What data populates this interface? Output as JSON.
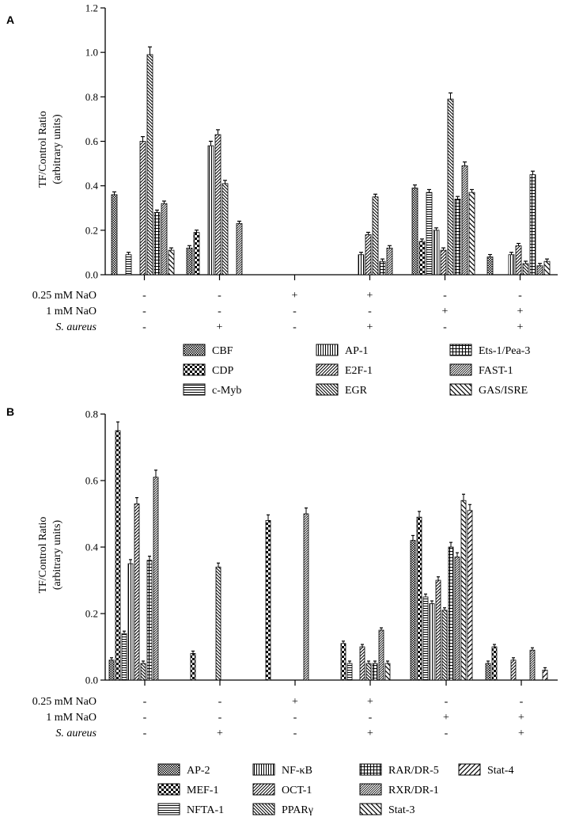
{
  "row_labels": [
    "0.25 mM  NaO",
    "1 mM  NaO",
    "S. aureus"
  ],
  "group_conditions": [
    [
      "-",
      "-",
      "-"
    ],
    [
      "-",
      "-",
      "+"
    ],
    [
      "+",
      "-",
      "-"
    ],
    [
      "+",
      "-",
      "+"
    ],
    [
      "-",
      "+",
      "-"
    ],
    [
      "-",
      "+",
      "+"
    ]
  ],
  "chart_data": [
    {
      "type": "bar",
      "panel": "A",
      "ylabel": [
        "TF/Control Ratio",
        "(arbitrary units)"
      ],
      "ylim": [
        0,
        1.2
      ],
      "yticks": [
        "0.0",
        "0.2",
        "0.4",
        "0.6",
        "0.8",
        "1.0",
        "1.2"
      ],
      "ytick_values": [
        0,
        0.2,
        0.4,
        0.6,
        0.8,
        1.0,
        1.2
      ],
      "groups": [
        "Control",
        "S. aureus",
        "0.25 mM NaO",
        "0.25 mM NaO + S. aureus",
        "1 mM NaO",
        "1 mM NaO + S. aureus"
      ],
      "series": [
        {
          "name": "CBF",
          "pattern": "pA1",
          "values": [
            0.36,
            0.12,
            0,
            0,
            0.39,
            0.08
          ]
        },
        {
          "name": "CDP",
          "pattern": "pA2",
          "values": [
            0,
            0.19,
            0,
            0,
            0.15,
            0
          ]
        },
        {
          "name": "c-Myb",
          "pattern": "pA3",
          "values": [
            0.09,
            0,
            0,
            0,
            0.37,
            0
          ]
        },
        {
          "name": "AP-1",
          "pattern": "pA4",
          "values": [
            0,
            0.58,
            0,
            0.09,
            0.2,
            0.09
          ]
        },
        {
          "name": "E2F-1",
          "pattern": "pA5",
          "values": [
            0.6,
            0.63,
            0,
            0.18,
            0.11,
            0.13
          ]
        },
        {
          "name": "EGR",
          "pattern": "pA6",
          "values": [
            0.99,
            0.41,
            0,
            0.35,
            0.79,
            0.05
          ]
        },
        {
          "name": "Ets-1/Pea-3",
          "pattern": "pA7",
          "values": [
            0.28,
            0,
            0,
            0.06,
            0.34,
            0.45
          ]
        },
        {
          "name": "FAST-1",
          "pattern": "pA8",
          "values": [
            0.32,
            0.23,
            0,
            0.12,
            0.49,
            0.04
          ]
        },
        {
          "name": "GAS/ISRE",
          "pattern": "pA9",
          "values": [
            0.11,
            0,
            0,
            0,
            0.37,
            0.06
          ]
        }
      ]
    },
    {
      "type": "bar",
      "panel": "B",
      "ylabel": [
        "TF/Control Ratio",
        "(arbitrary units)"
      ],
      "ylim": [
        0,
        0.8
      ],
      "yticks": [
        "0.0",
        "0.2",
        "0.4",
        "0.6",
        "0.8"
      ],
      "ytick_values": [
        0,
        0.2,
        0.4,
        0.6,
        0.8
      ],
      "groups": [
        "Control",
        "S. aureus",
        "0.25 mM NaO",
        "0.25 mM NaO + S. aureus",
        "1 mM NaO",
        "1 mM NaO + S. aureus"
      ],
      "series": [
        {
          "name": "AP-2",
          "pattern": "pB1",
          "values": [
            0.06,
            0,
            0,
            0,
            0.42,
            0.05
          ]
        },
        {
          "name": "MEF-1",
          "pattern": "pB2",
          "values": [
            0.75,
            0.08,
            0.48,
            0.11,
            0.49,
            0.1
          ]
        },
        {
          "name": "NFTA-1",
          "pattern": "pB3",
          "values": [
            0.14,
            0,
            0,
            0.05,
            0.25,
            0
          ]
        },
        {
          "name": "NF-κB",
          "pattern": "pB4",
          "values": [
            0.35,
            0,
            0,
            0,
            0.23,
            0
          ]
        },
        {
          "name": "OCT-1",
          "pattern": "pB5",
          "values": [
            0.53,
            0,
            0,
            0.1,
            0.3,
            0.06
          ]
        },
        {
          "name": "PPARγ",
          "pattern": "pB6",
          "values": [
            0.05,
            0.34,
            0,
            0.05,
            0.21,
            0
          ]
        },
        {
          "name": "RAR/DR-5",
          "pattern": "pB7",
          "values": [
            0.36,
            0,
            0,
            0.05,
            0.4,
            0
          ]
        },
        {
          "name": "RXR/DR-1",
          "pattern": "pB8",
          "values": [
            0.61,
            0,
            0.5,
            0.15,
            0.37,
            0.09
          ]
        },
        {
          "name": "Stat-3",
          "pattern": "pB9",
          "values": [
            0,
            0,
            0,
            0.05,
            0.54,
            0
          ]
        },
        {
          "name": "Stat-4",
          "pattern": "pB10",
          "values": [
            0,
            0,
            0,
            0,
            0.51,
            0.03
          ]
        }
      ]
    }
  ]
}
